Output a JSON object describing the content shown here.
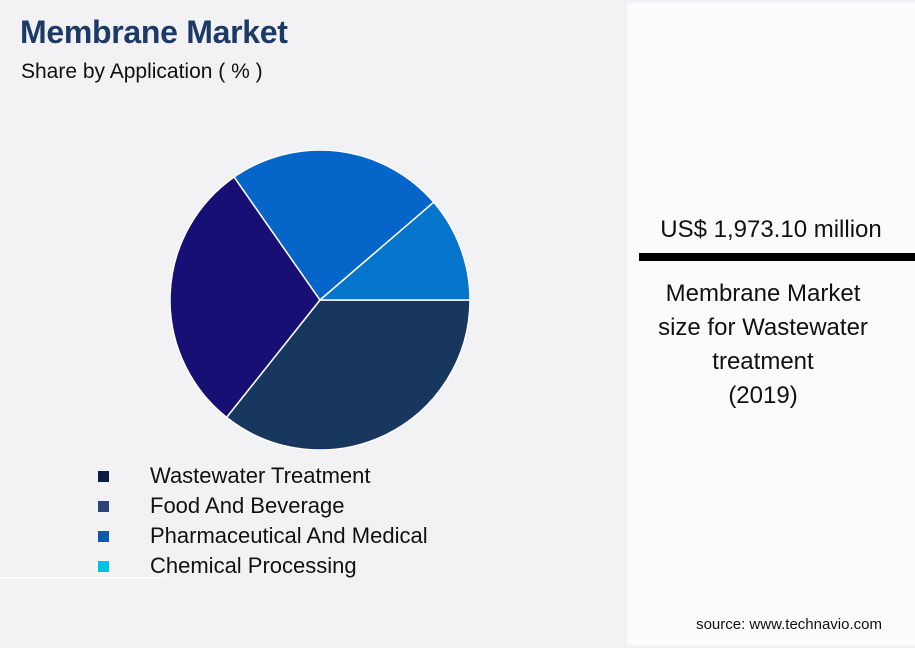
{
  "header": {
    "title": "Membrane Market",
    "subtitle": "Share by Application ( % )"
  },
  "legend": [
    {
      "label": "Wastewater Treatment",
      "color": "#0b1c45"
    },
    {
      "label": "Food And Beverage",
      "color": "#2b4479"
    },
    {
      "label": "Pharmaceutical And Medical",
      "color": "#0a5aab"
    },
    {
      "label": "Chemical Processing",
      "color": "#00c0e4"
    }
  ],
  "panel": {
    "value": "US$ 1,973.10 million",
    "description_lines": [
      "Membrane Market",
      "size for Wastewater",
      "treatment",
      "(2019)"
    ],
    "source": "source: www.technavio.com"
  },
  "chart_data": {
    "type": "pie",
    "title": "Membrane Market",
    "subtitle": "Share by Application ( % )",
    "categories": [
      "Wastewater Treatment",
      "Food And Beverage",
      "Pharmaceutical And Medical",
      "Chemical Processing"
    ],
    "values": [
      35.7,
      29.6,
      23.4,
      11.3
    ],
    "slice_colors": [
      "#17375e",
      "#170f73",
      "#0565c9",
      "#0575cc"
    ],
    "start_angle_deg": 0,
    "direction": "clockwise",
    "legend_position": "bottom",
    "annotation": "US$ 1,973.10 million — Membrane Market size for Wastewater treatment (2019)"
  }
}
